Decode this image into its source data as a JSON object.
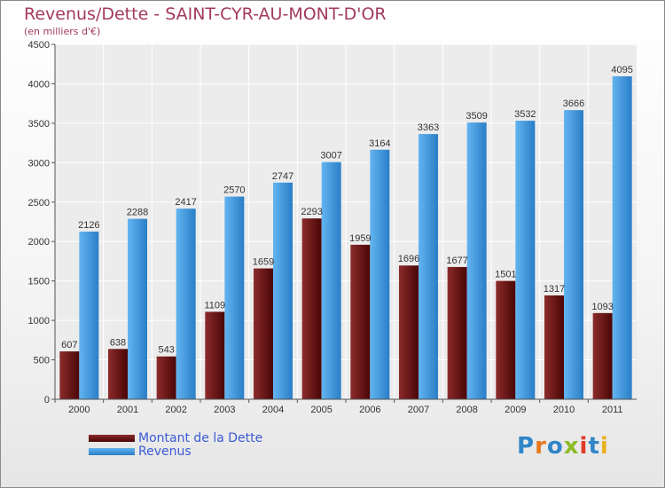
{
  "chart_data": {
    "type": "bar",
    "title": "Revenus/Dette - SAINT-CYR-AU-MONT-D'OR",
    "subtitle": "(en milliers d'€)",
    "xlabel": "",
    "ylabel": "",
    "ylim": [
      0,
      4500
    ],
    "yticks": [
      0,
      500,
      1000,
      1500,
      2000,
      2500,
      3000,
      3500,
      4000,
      4500
    ],
    "grid": true,
    "categories": [
      "2000",
      "2001",
      "2002",
      "2003",
      "2004",
      "2005",
      "2006",
      "2007",
      "2008",
      "2009",
      "2010",
      "2011"
    ],
    "series": [
      {
        "name": "Montant de la Dette",
        "color": "#6e1414",
        "values": [
          607,
          638,
          543,
          1109,
          1659,
          2293,
          1959,
          1696,
          1677,
          1501,
          1317,
          1093
        ],
        "labels": [
          "607",
          "638",
          "543",
          "1109",
          "1659",
          "2293",
          "1959",
          "1696",
          "1677",
          "1501",
          "1317",
          "1093"
        ]
      },
      {
        "name": "Revenus",
        "color": "#3d96dd",
        "values": [
          2126,
          2288,
          2417,
          2570,
          2747,
          3007,
          3164,
          3363,
          3509,
          3532,
          3666,
          4095
        ],
        "labels": [
          "2126",
          "2288",
          "2417",
          "2570",
          "2747",
          "3007",
          "3164",
          "3363",
          "3509",
          "3532",
          "3666",
          "4095"
        ]
      }
    ],
    "legend_position": "bottom-left"
  },
  "legend": {
    "debt_label": "Montant de la Dette",
    "revenue_label": "Revenus"
  },
  "logo": {
    "text": "Proxiti",
    "colors": [
      "#2f86c8",
      "#e8791d",
      "#2f86c8",
      "#8dbb26",
      "#e03a28",
      "#2f86c8",
      "#e8b21d"
    ]
  }
}
